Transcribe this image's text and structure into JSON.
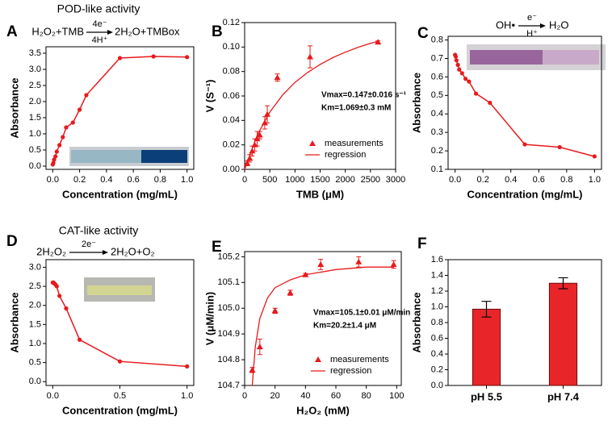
{
  "chart_data": [
    {
      "type": "line",
      "label": "A",
      "title": "POD-like activity",
      "reaction": {
        "left": "H₂O₂+TMB",
        "above": "4e⁻",
        "below": "4H⁺",
        "right": "2H₂O+TMBox"
      },
      "xlabel": "Concentration (mg/mL)",
      "ylabel": "Absorbance",
      "x": [
        0,
        0.005,
        0.01,
        0.02,
        0.03,
        0.05,
        0.075,
        0.1,
        0.15,
        0.2,
        0.25,
        0.5,
        0.75,
        1.0
      ],
      "series": [
        {
          "color": "#e8191c",
          "values": [
            0.05,
            0.1,
            0.2,
            0.3,
            0.45,
            0.65,
            0.9,
            1.2,
            1.35,
            1.75,
            2.2,
            3.35,
            3.4,
            3.38
          ]
        }
      ],
      "xlim": [
        -0.05,
        1.05
      ],
      "ylim": [
        -0.1,
        3.7
      ],
      "xticks": [
        {
          "value": 0,
          "label": "0.0"
        },
        0.2,
        0.4,
        0.6,
        0.8,
        {
          "value": 1,
          "label": "1.0"
        }
      ],
      "yticks": [
        {
          "value": 0,
          "label": "0.0"
        },
        0.5,
        {
          "value": 1,
          "label": "1.0"
        },
        1.5,
        {
          "value": 2,
          "label": "2.0"
        },
        2.5,
        {
          "value": 3,
          "label": "3.0"
        },
        3.5
      ]
    },
    {
      "type": "scatter",
      "label": "B",
      "xlabel": "TMB (μM)",
      "ylabel": "V (S⁻¹)",
      "annotations": [
        "Vmax=0.147±0.016 s⁻¹",
        "Km=1.069±0.3 mM"
      ],
      "series": [
        {
          "name": "measurements",
          "color": "#e8191c",
          "marker": "triangle",
          "x": [
            50,
            100,
            150,
            200,
            250,
            300,
            400,
            450,
            650,
            1300,
            2650
          ],
          "values": [
            0.005,
            0.009,
            0.015,
            0.02,
            0.025,
            0.028,
            0.038,
            0.045,
            0.075,
            0.092,
            0.104
          ],
          "errors": [
            0.002,
            0.003,
            0.004,
            0.005,
            0.006,
            0.003,
            0.005,
            0.007,
            0.003,
            0.009,
            0.001
          ]
        },
        {
          "name": "regression",
          "color": "#e8191c",
          "marker": "line",
          "x": [
            0,
            250,
            500,
            750,
            1000,
            1250,
            1500,
            1750,
            2000,
            2250,
            2500,
            2650
          ],
          "values": [
            0,
            0.0279,
            0.0468,
            0.0606,
            0.0711,
            0.0792,
            0.0858,
            0.0913,
            0.0958,
            0.0997,
            0.103,
            0.1047
          ]
        }
      ],
      "legend": "lower right",
      "xlim": [
        0,
        3000
      ],
      "ylim": [
        0,
        0.12
      ],
      "xticks": [
        0,
        500,
        1000,
        1500,
        2000,
        2500,
        3000
      ],
      "yticks": [
        {
          "value": 0,
          "label": "0.00"
        },
        {
          "value": 0.02,
          "label": "0.02"
        },
        {
          "value": 0.04,
          "label": "0.04"
        },
        {
          "value": 0.06,
          "label": "0.06"
        },
        {
          "value": 0.08,
          "label": "0.08"
        },
        {
          "value": 0.1,
          "label": "0.10"
        },
        {
          "value": 0.12,
          "label": "0.12"
        }
      ]
    },
    {
      "type": "line",
      "label": "C",
      "reaction": {
        "left": "OH•",
        "above": "e⁻",
        "below": "H⁺",
        "right": "H₂O"
      },
      "xlabel": "Concentration (mg/mL)",
      "ylabel": "Absorbance",
      "x": [
        0,
        0.005,
        0.01,
        0.02,
        0.03,
        0.05,
        0.075,
        0.1,
        0.15,
        0.25,
        0.5,
        0.75,
        1.0
      ],
      "series": [
        {
          "color": "#e8191c",
          "values": [
            0.72,
            0.71,
            0.69,
            0.665,
            0.64,
            0.62,
            0.59,
            0.575,
            0.51,
            0.46,
            0.235,
            0.22,
            0.17
          ]
        }
      ],
      "xlim": [
        -0.05,
        1.05
      ],
      "ylim": [
        0.1,
        0.82
      ],
      "xticks": [
        {
          "value": 0,
          "label": "0.0"
        },
        0.2,
        0.4,
        0.6,
        0.8,
        {
          "value": 1,
          "label": "1.0"
        }
      ],
      "yticks": [
        0.1,
        0.2,
        0.3,
        0.4,
        0.5,
        0.6,
        0.7,
        0.8
      ]
    },
    {
      "type": "line",
      "label": "D",
      "title": "CAT-like activity",
      "reaction": {
        "left": "2H₂O₂",
        "above": "2e⁻",
        "right": "2H₂O+O₂"
      },
      "xlabel": "Concentration (mg/mL)",
      "ylabel": "Absorbance",
      "x": [
        0,
        0.005,
        0.01,
        0.02,
        0.03,
        0.05,
        0.1,
        0.2,
        0.5,
        1.0
      ],
      "series": [
        {
          "color": "#e8191c",
          "values": [
            2.6,
            2.6,
            2.58,
            2.55,
            2.5,
            2.25,
            1.92,
            1.1,
            0.53,
            0.4
          ]
        }
      ],
      "xlim": [
        -0.05,
        1.05
      ],
      "ylim": [
        -0.1,
        3.2
      ],
      "xticks": [
        {
          "value": 0,
          "label": "0.0"
        },
        0.5,
        {
          "value": 1,
          "label": "1.0"
        }
      ],
      "yticks": [
        {
          "value": 0,
          "label": "0.0"
        },
        0.5,
        {
          "value": 1,
          "label": "1.0"
        },
        1.5,
        {
          "value": 2,
          "label": "2.0"
        },
        2.5,
        {
          "value": 3,
          "label": "3.0"
        }
      ]
    },
    {
      "type": "scatter",
      "label": "E",
      "xlabel": "H₂O₂ (mM)",
      "ylabel": "V (μM/min)",
      "annotations": [
        "Vmax=105.1±0.01 μM/min",
        "Km=20.2±1.4 μM"
      ],
      "series": [
        {
          "name": "measurements",
          "color": "#e8191c",
          "marker": "triangle",
          "x": [
            5,
            10,
            20,
            30,
            40,
            50,
            75,
            98
          ],
          "values": [
            104.76,
            104.85,
            104.99,
            105.06,
            105.13,
            105.17,
            105.18,
            105.17
          ],
          "errors": [
            0.01,
            0.03,
            0.01,
            0.01,
            0.005,
            0.02,
            0.02,
            0.015
          ]
        },
        {
          "name": "regression",
          "color": "#e8191c",
          "marker": "line",
          "x": [
            5,
            7,
            10,
            15,
            20,
            30,
            40,
            60,
            80,
            98
          ],
          "values": [
            104.7,
            104.85,
            104.96,
            105.04,
            105.08,
            105.11,
            105.13,
            105.15,
            105.16,
            105.16
          ]
        }
      ],
      "legend": "lower right",
      "xlim": [
        0,
        103
      ],
      "ylim": [
        104.7,
        105.22
      ],
      "xticks": [
        0,
        20,
        40,
        60,
        80,
        100
      ],
      "yticks": [
        104.7,
        104.8,
        104.9,
        {
          "value": 105,
          "label": "105.0"
        },
        105.1,
        105.2
      ]
    },
    {
      "type": "bar",
      "label": "F",
      "ylabel": "Absorbance",
      "categories": [
        "pH 5.5",
        "pH 7.4"
      ],
      "values": [
        0.97,
        1.3
      ],
      "errors": [
        0.1,
        0.07
      ],
      "color": "#e8262a",
      "ylim": [
        0,
        1.6
      ],
      "yticks": [
        {
          "value": 0,
          "label": "0.0"
        },
        0.2,
        0.4,
        0.6,
        0.8,
        {
          "value": 1,
          "label": "1.0"
        },
        1.2,
        1.4,
        1.6
      ]
    }
  ]
}
